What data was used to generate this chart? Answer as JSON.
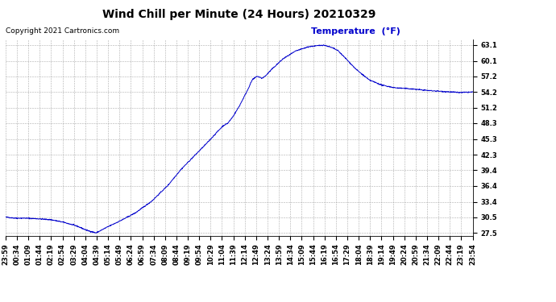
{
  "title": "Wind Chill per Minute (24 Hours) 20210329",
  "ylabel": "Temperature  (°F)",
  "copyright": "Copyright 2021 Cartronics.com",
  "line_color": "#0000cc",
  "background_color": "#ffffff",
  "grid_color": "#999999",
  "yticks": [
    27.5,
    30.5,
    33.4,
    36.4,
    39.4,
    42.3,
    45.3,
    48.3,
    51.2,
    54.2,
    57.2,
    60.1,
    63.1
  ],
  "ylim": [
    27.0,
    64.2
  ],
  "xtick_labels": [
    "23:59",
    "00:34",
    "01:09",
    "01:44",
    "02:19",
    "02:54",
    "03:29",
    "04:04",
    "04:39",
    "05:14",
    "05:49",
    "06:24",
    "06:59",
    "07:34",
    "08:09",
    "08:44",
    "09:19",
    "09:54",
    "10:29",
    "11:04",
    "11:39",
    "12:14",
    "12:49",
    "13:24",
    "13:59",
    "14:34",
    "15:09",
    "15:44",
    "16:19",
    "16:54",
    "17:29",
    "18:04",
    "18:39",
    "19:14",
    "19:49",
    "20:24",
    "20:59",
    "21:34",
    "22:09",
    "22:44",
    "23:19",
    "23:54"
  ],
  "n_points": 1440,
  "title_fontsize": 10,
  "tick_fontsize": 6,
  "copyright_fontsize": 6.5,
  "ylabel_fontsize": 8
}
